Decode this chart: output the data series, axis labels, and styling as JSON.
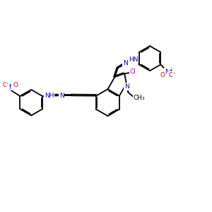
{
  "bg_color": "#ffffff",
  "bond_color": "#000000",
  "bond_lw": 1.3,
  "N_color": "#0000cc",
  "O_color": "#cc0000",
  "Cl_color": "#aa00aa",
  "figsize": [
    3.0,
    3.0
  ],
  "dpi": 100,
  "xlim": [
    0,
    12
  ],
  "ylim": [
    0,
    10
  ]
}
